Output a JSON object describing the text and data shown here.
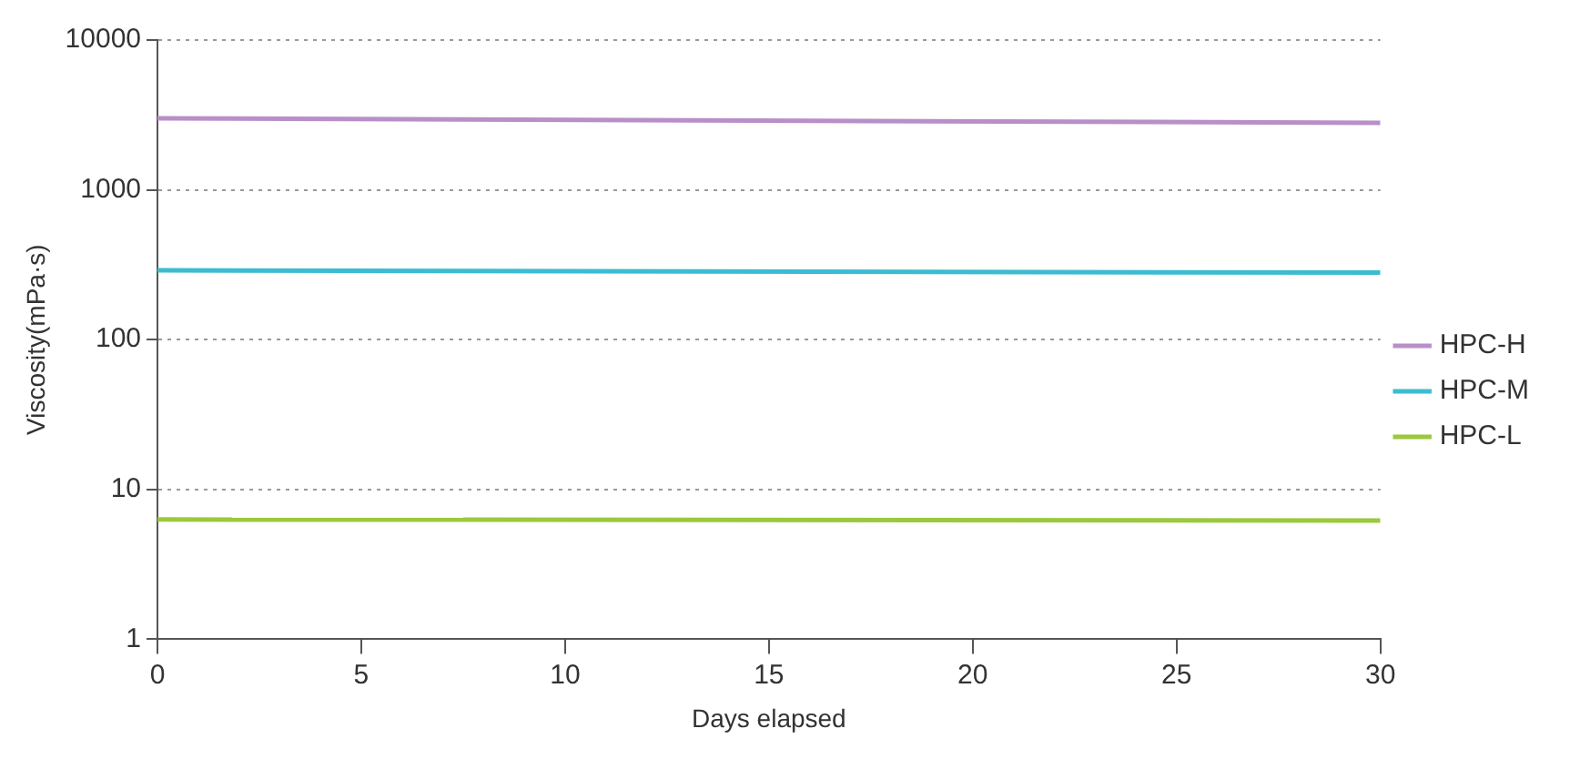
{
  "chart_data": {
    "type": "line",
    "xlabel": "Days elapsed",
    "ylabel": "Viscosity(mPa·s)",
    "x": [
      0,
      30
    ],
    "series": [
      {
        "name": "HPC-H",
        "color": "#b88fc8",
        "values": [
          3000,
          2800
        ]
      },
      {
        "name": "HPC-M",
        "color": "#3bbcd0",
        "values": [
          290,
          280
        ]
      },
      {
        "name": "HPC-L",
        "color": "#9cc83c",
        "values": [
          6.3,
          6.2
        ]
      }
    ],
    "xlim": [
      0,
      30
    ],
    "xticks": [
      0,
      5,
      10,
      15,
      20,
      25,
      30
    ],
    "ylim": [
      1,
      10000
    ],
    "yticks": [
      1,
      10,
      100,
      1000,
      10000
    ],
    "log": "y",
    "grid": "y",
    "legend": "right",
    "marker": "none",
    "line_style": "solid"
  }
}
